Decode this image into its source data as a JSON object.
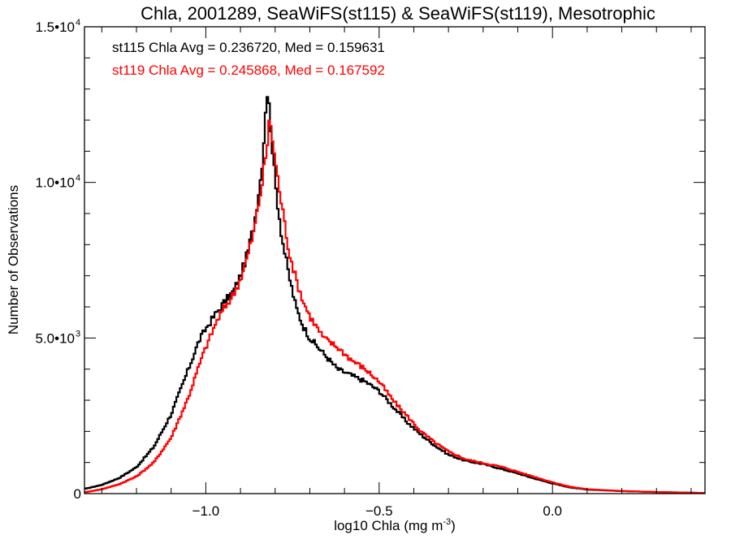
{
  "chart_data": {
    "type": "line",
    "style": "step-histogram",
    "title": "Chla, 2001289, SeaWiFS(st115) & SeaWiFS(st119), Mesotrophic",
    "xlabel": "log10 Chla (mg m",
    "xlabel_sup": "-3",
    "xlabel_end": ")",
    "ylabel": "Number of Observations",
    "xlim": [
      -1.35,
      0.44
    ],
    "ylim": [
      0,
      15000
    ],
    "bin_width": 0.005,
    "x_ticks": [
      {
        "value": -1.0,
        "label": "−1.0"
      },
      {
        "value": -0.5,
        "label": "−0.5"
      },
      {
        "value": 0.0,
        "label": "0.0"
      }
    ],
    "x_minor_step": 0.1,
    "y_ticks": [
      {
        "value": 0,
        "label": "0",
        "exp": ""
      },
      {
        "value": 5000,
        "label": "5.0•10",
        "exp": "3"
      },
      {
        "value": 10000,
        "label": "1.0•10",
        "exp": "4"
      },
      {
        "value": 15000,
        "label": "1.5•10",
        "exp": "4"
      }
    ],
    "y_minor_step": 1000,
    "grid": false,
    "annotations": [
      {
        "text": "st115 Chla Avg = 0.236720, Med = 0.159631",
        "color": "#000000"
      },
      {
        "text": "st119 Chla Avg = 0.245868, Med = 0.167592",
        "color": "#ff0000"
      }
    ],
    "series": [
      {
        "name": "st115",
        "color": "#000000",
        "x": [
          -1.35,
          -1.3,
          -1.25,
          -1.2,
          -1.15,
          -1.1,
          -1.05,
          -1.02,
          -1.0,
          -0.97,
          -0.95,
          -0.92,
          -0.9,
          -0.88,
          -0.86,
          -0.84,
          -0.83,
          -0.825,
          -0.815,
          -0.8,
          -0.78,
          -0.76,
          -0.74,
          -0.72,
          -0.7,
          -0.66,
          -0.62,
          -0.58,
          -0.54,
          -0.5,
          -0.46,
          -0.42,
          -0.38,
          -0.34,
          -0.3,
          -0.25,
          -0.2,
          -0.15,
          -0.1,
          -0.05,
          0.0,
          0.05,
          0.1,
          0.2,
          0.3,
          0.44
        ],
        "values": [
          150,
          280,
          500,
          850,
          1500,
          2550,
          4000,
          4900,
          5300,
          5800,
          6100,
          6500,
          7000,
          7700,
          8700,
          10300,
          11700,
          13100,
          12200,
          10000,
          8200,
          7000,
          6000,
          5400,
          5000,
          4500,
          4000,
          3800,
          3600,
          3300,
          2800,
          2300,
          1900,
          1550,
          1250,
          1050,
          950,
          800,
          650,
          480,
          330,
          200,
          130,
          80,
          50,
          20
        ]
      },
      {
        "name": "st119",
        "color": "#ff0000",
        "x": [
          -1.35,
          -1.3,
          -1.25,
          -1.2,
          -1.15,
          -1.1,
          -1.05,
          -1.02,
          -1.0,
          -0.97,
          -0.95,
          -0.92,
          -0.9,
          -0.88,
          -0.86,
          -0.84,
          -0.825,
          -0.815,
          -0.8,
          -0.78,
          -0.76,
          -0.74,
          -0.72,
          -0.7,
          -0.66,
          -0.62,
          -0.58,
          -0.54,
          -0.5,
          -0.46,
          -0.42,
          -0.38,
          -0.34,
          -0.3,
          -0.25,
          -0.2,
          -0.15,
          -0.1,
          -0.05,
          0.0,
          0.05,
          0.1,
          0.2,
          0.3,
          0.44
        ],
        "values": [
          40,
          140,
          300,
          550,
          1000,
          1800,
          3100,
          4100,
          4700,
          5500,
          5900,
          6400,
          6900,
          7600,
          8500,
          9800,
          11000,
          12100,
          10700,
          9200,
          7800,
          6900,
          6200,
          5700,
          5000,
          4700,
          4300,
          4000,
          3600,
          3000,
          2500,
          2000,
          1650,
          1350,
          1100,
          980,
          870,
          700,
          530,
          360,
          220,
          140,
          85,
          50,
          20
        ]
      }
    ]
  }
}
